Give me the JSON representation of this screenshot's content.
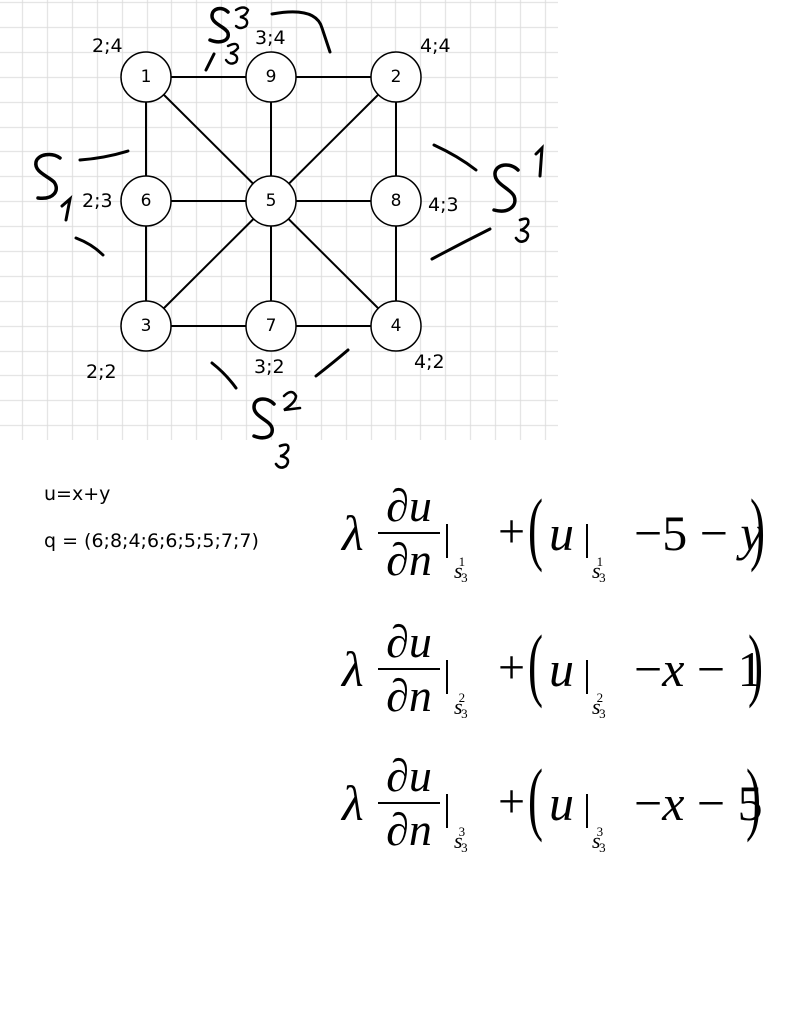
{
  "mesh": {
    "nodes": [
      {
        "id": "1",
        "coord": "2;4"
      },
      {
        "id": "9",
        "coord": "3;4"
      },
      {
        "id": "2",
        "coord": "4;4"
      },
      {
        "id": "6",
        "coord": "2;3"
      },
      {
        "id": "5",
        "coord": ""
      },
      {
        "id": "8",
        "coord": "4;3"
      },
      {
        "id": "3",
        "coord": "2;2"
      },
      {
        "id": "7",
        "coord": "3;2"
      },
      {
        "id": "4",
        "coord": "4;2"
      }
    ],
    "side_labels": {
      "left": {
        "main": "S",
        "sub": "1"
      },
      "right": {
        "main": "S",
        "sub": "3",
        "sup": "1"
      },
      "bottom": {
        "main": "S",
        "sub": "3",
        "sup": "2"
      },
      "top": {
        "main": "S",
        "sub": "3",
        "sup": "3"
      }
    }
  },
  "info": {
    "u_def": "u=x+y",
    "q_def": "q = (6;8;4;6;6;5;5;7;7)"
  },
  "equations": [
    {
      "lambda": "λ",
      "num": "∂u",
      "den": "∂n",
      "sub_main": "s",
      "sub_idx": "3",
      "sub_sup": "1",
      "plus": "+",
      "u": "u",
      "tail_pre": " −5 − ",
      "tail_var": "y",
      "tail_post": ""
    },
    {
      "lambda": "λ",
      "num": "∂u",
      "den": "∂n",
      "sub_main": "s",
      "sub_idx": "3",
      "sub_sup": "2",
      "plus": "+",
      "u": "u",
      "tail_pre": " −",
      "tail_var": "x",
      "tail_post": " − 1"
    },
    {
      "lambda": "λ",
      "num": "∂u",
      "den": "∂n",
      "sub_main": "s",
      "sub_idx": "3",
      "sub_sup": "3",
      "plus": "+",
      "u": "u",
      "tail_pre": " −",
      "tail_var": "x",
      "tail_post": " − 5"
    }
  ]
}
